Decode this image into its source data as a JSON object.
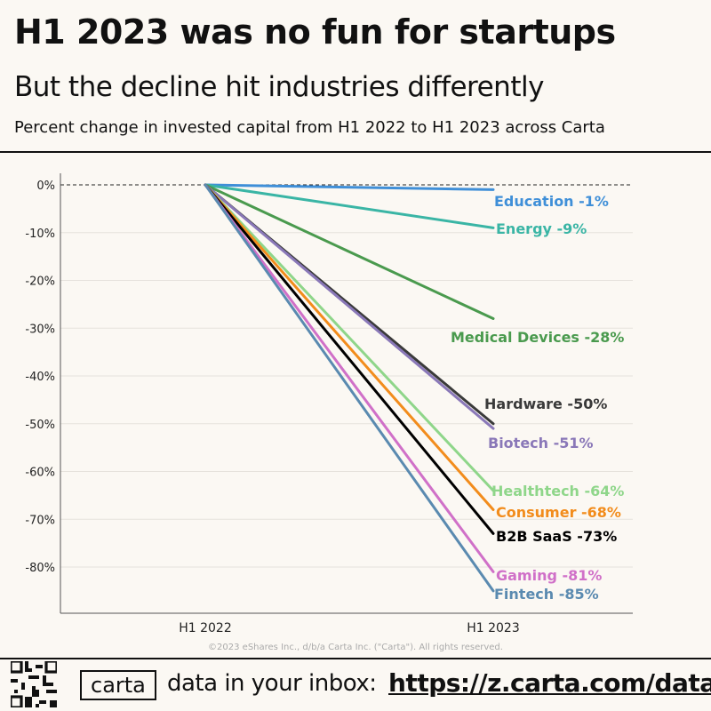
{
  "header": {
    "title": "H1 2023 was no fun for startups",
    "subtitle": "But the decline hit industries differently",
    "description": "Percent change in invested capital from H1 2022 to H1 2023 across Carta"
  },
  "footer": {
    "copyright": "©2023 eShares Inc., d/b/a Carta Inc. (\"Carta\"). All rights reserved.",
    "logo": "carta",
    "cta": "data in your inbox:",
    "url": "https://z.carta.com/data"
  },
  "chart_data": {
    "type": "line",
    "title": "H1 2023 was no fun for startups",
    "x": [
      "H1 2022",
      "H1 2023"
    ],
    "ylim": [
      -90,
      0
    ],
    "yticks": [
      0,
      -10,
      -20,
      -30,
      -40,
      -50,
      -60,
      -70,
      -80
    ],
    "ytick_labels": [
      "0%",
      "-10%",
      "-20%",
      "-30%",
      "-40%",
      "-50%",
      "-60%",
      "-70%",
      "-80%"
    ],
    "grid": true,
    "series": [
      {
        "name": "Education",
        "label": "Education -1%",
        "values": [
          0,
          -1
        ],
        "color": "#3f8fd8"
      },
      {
        "name": "Energy",
        "label": "Energy -9%",
        "values": [
          0,
          -9
        ],
        "color": "#3ab5a5"
      },
      {
        "name": "Medical Devices",
        "label": "Medical Devices -28%",
        "values": [
          0,
          -28
        ],
        "color": "#4a9a4e"
      },
      {
        "name": "Hardware",
        "label": "Hardware -50%",
        "values": [
          0,
          -50
        ],
        "color": "#3a3a3a"
      },
      {
        "name": "Biotech",
        "label": "Biotech -51%",
        "values": [
          0,
          -51
        ],
        "color": "#8a78b8"
      },
      {
        "name": "Healthtech",
        "label": "Healthtech -64%",
        "values": [
          0,
          -64
        ],
        "color": "#8fd68a"
      },
      {
        "name": "Consumer",
        "label": "Consumer -68%",
        "values": [
          0,
          -68
        ],
        "color": "#f28c1c"
      },
      {
        "name": "B2B SaaS",
        "label": "B2B SaaS -73%",
        "values": [
          0,
          -73
        ],
        "color": "#000000"
      },
      {
        "name": "Gaming",
        "label": "Gaming -81%",
        "values": [
          0,
          -81
        ],
        "color": "#d070c8"
      },
      {
        "name": "Fintech",
        "label": "Fintech -85%",
        "values": [
          0,
          -85
        ],
        "color": "#5a8ab0"
      }
    ]
  }
}
